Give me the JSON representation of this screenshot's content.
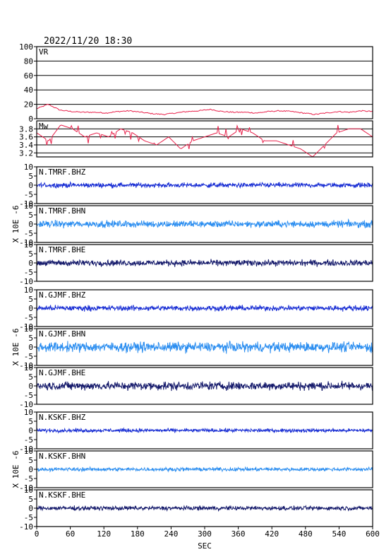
{
  "title": "2022/11/20 18:30",
  "xlabel": "SEC",
  "chart_data": {
    "type": "line",
    "title": "2022/11/20 18:30",
    "xlabel": "SEC",
    "xlim": [
      0,
      600
    ],
    "xticks": [
      "0",
      "60",
      "120",
      "180",
      "240",
      "300",
      "360",
      "420",
      "480",
      "540",
      "600"
    ],
    "panels": [
      {
        "label": "VR",
        "ylim": [
          0,
          100
        ],
        "yticks": [
          "0",
          "20",
          "40",
          "60",
          "80",
          "100"
        ],
        "grid": true,
        "color": "#e8204a",
        "kind": "vr",
        "description_values": [
          14,
          20,
          12,
          10,
          9,
          9,
          8,
          10,
          11,
          9,
          7,
          6,
          8,
          10,
          11,
          13,
          10,
          9,
          9,
          8,
          10,
          11,
          10,
          8,
          6,
          8,
          10,
          9,
          11,
          10
        ]
      },
      {
        "label": "Mw",
        "ylim": [
          3.1,
          4.0
        ],
        "yticks": [
          "3.2",
          "3.4",
          "3.6",
          "3.8"
        ],
        "grid": true,
        "color": "#e8204a",
        "kind": "mw",
        "description_values": [
          3.7,
          3.5,
          3.9,
          3.8,
          3.6,
          3.7,
          3.6,
          3.8,
          3.7,
          3.5,
          3.4,
          3.6,
          3.3,
          3.5,
          3.6,
          3.7,
          3.6,
          3.8,
          3.7,
          3.5,
          3.5,
          3.4,
          3.3,
          3.1,
          3.4,
          3.7,
          3.8,
          3.8,
          3.6
        ]
      },
      {
        "label": "N.TMRF.BHZ",
        "ylim": [
          -10,
          10
        ],
        "yticks": [
          "-10",
          "-5",
          "0",
          "5",
          "10"
        ],
        "color": "#1a2fd4",
        "amplitude": 0.8,
        "kind": "wave"
      },
      {
        "label": "N.TMRF.BHN",
        "ylim": [
          -10,
          10
        ],
        "yticks": [
          "-10",
          "-5",
          "0",
          "5",
          "10"
        ],
        "color": "#2c8ef0",
        "amplitude": 1.1,
        "kind": "wave"
      },
      {
        "label": "N.TMRF.BHE",
        "ylim": [
          -10,
          10
        ],
        "yticks": [
          "-10",
          "-5",
          "0",
          "5",
          "10"
        ],
        "color": "#151a6b",
        "amplitude": 1.0,
        "kind": "wave"
      },
      {
        "label": "N.GJMF.BHZ",
        "ylim": [
          -10,
          10
        ],
        "yticks": [
          "-10",
          "-5",
          "0",
          "5",
          "10"
        ],
        "color": "#1a2fd4",
        "amplitude": 0.9,
        "kind": "wave"
      },
      {
        "label": "N.GJMF.BHN",
        "ylim": [
          -10,
          10
        ],
        "yticks": [
          "-10",
          "-5",
          "0",
          "5",
          "10"
        ],
        "color": "#2c8ef0",
        "amplitude": 1.6,
        "kind": "wave"
      },
      {
        "label": "N.GJMF.BHE",
        "ylim": [
          -10,
          10
        ],
        "yticks": [
          "-10",
          "-5",
          "0",
          "5",
          "10"
        ],
        "color": "#151a6b",
        "amplitude": 1.4,
        "kind": "wave"
      },
      {
        "label": "N.KSKF.BHZ",
        "ylim": [
          -10,
          10
        ],
        "yticks": [
          "-10",
          "-5",
          "0",
          "5",
          "10"
        ],
        "color": "#1a2fd4",
        "amplitude": 0.6,
        "kind": "wave"
      },
      {
        "label": "N.KSKF.BHN",
        "ylim": [
          -10,
          10
        ],
        "yticks": [
          "-10",
          "-5",
          "0",
          "5",
          "10"
        ],
        "color": "#2c8ef0",
        "amplitude": 0.6,
        "kind": "wave"
      },
      {
        "label": "N.KSKF.BHE",
        "ylim": [
          -10,
          10
        ],
        "yticks": [
          "-10",
          "-5",
          "0",
          "5",
          "10"
        ],
        "color": "#151a6b",
        "amplitude": 0.7,
        "kind": "wave"
      }
    ],
    "group_ylabel": "X 10E -6"
  }
}
